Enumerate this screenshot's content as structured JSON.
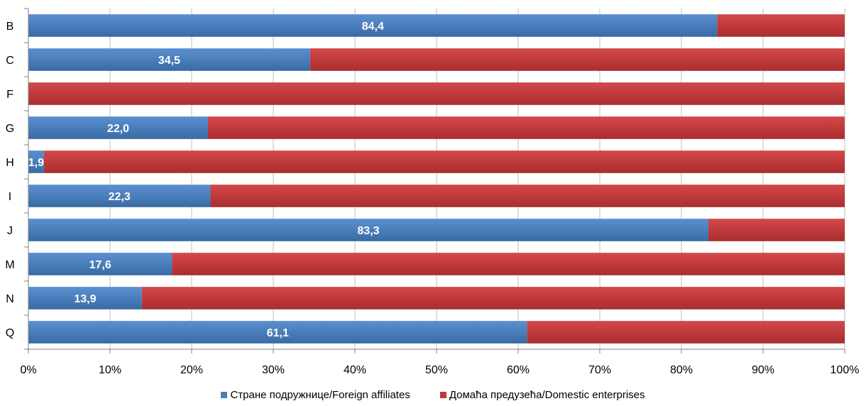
{
  "chart_data": {
    "type": "bar",
    "orientation": "horizontal",
    "stacked": "percent",
    "categories": [
      "B",
      "C",
      "F",
      "G",
      "H",
      "I",
      "J",
      "M",
      "N",
      "Q"
    ],
    "series": [
      {
        "name": "Стране подружнице/Foreign affiliates",
        "color": "#4a7ebb",
        "values": [
          84.4,
          34.5,
          0,
          22.0,
          1.9,
          22.3,
          83.3,
          17.6,
          13.9,
          61.1
        ],
        "labels": [
          "84,4",
          "34,5",
          "",
          "22,0",
          "1,9",
          "22,3",
          "83,3",
          "17,6",
          "13,9",
          "61,1"
        ]
      },
      {
        "name": "Домаћа предузећа/Domestic enterprises",
        "color": "#c0393b",
        "values": [
          15.6,
          65.5,
          100,
          78.0,
          98.1,
          77.7,
          16.7,
          82.4,
          86.1,
          38.9
        ]
      }
    ],
    "x_ticks": [
      "0%",
      "10%",
      "20%",
      "30%",
      "40%",
      "50%",
      "60%",
      "70%",
      "80%",
      "90%",
      "100%"
    ],
    "xlim": [
      0,
      100
    ],
    "grid": true,
    "legend_position": "bottom"
  }
}
